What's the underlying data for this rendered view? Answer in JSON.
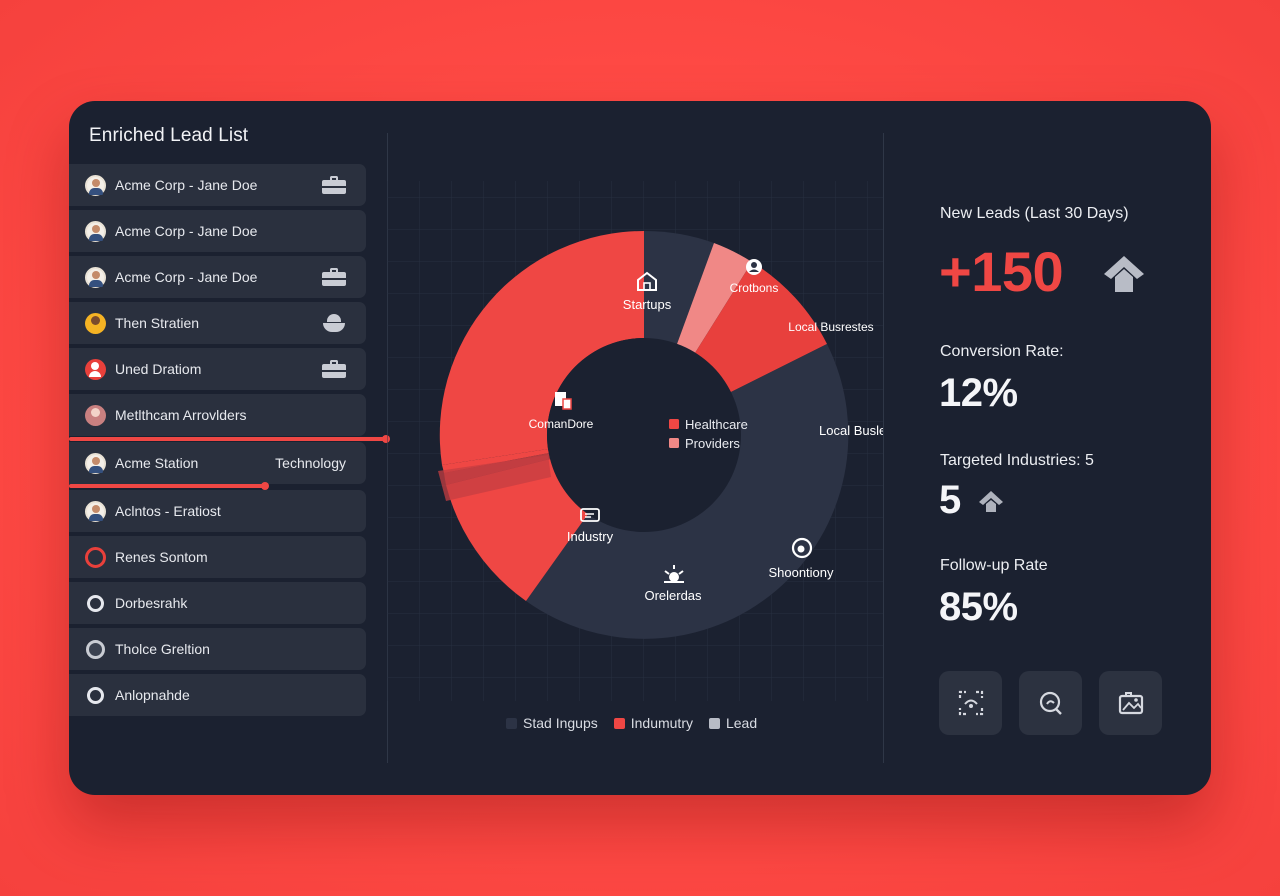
{
  "lead_list": {
    "title": "Enriched Lead List",
    "items": [
      {
        "name": "Acme Corp - Jane Doe",
        "avatar": "person-avatar",
        "icon": "briefcase-icon"
      },
      {
        "name": "Acme Corp - Jane Doe",
        "avatar": "person-avatar",
        "icon": ""
      },
      {
        "name": "Acme Corp - Jane Doe",
        "avatar": "person-avatar",
        "icon": "briefcase-icon"
      },
      {
        "name": "Then Stratien",
        "avatar": "person-avatar",
        "icon": "hat-icon"
      },
      {
        "name": "Uned Dratiom",
        "avatar": "person-avatar",
        "icon": "briefcase-icon"
      },
      {
        "name": "Metlthcam Arrovlders",
        "avatar": "person-avatar",
        "icon": ""
      },
      {
        "name": "Acme Station",
        "avatar": "person-avatar",
        "tag": "Technology"
      },
      {
        "name": "Aclntos - Eratiost",
        "avatar": "person-avatar",
        "icon": ""
      },
      {
        "name": "Renes Sontom",
        "avatar": "ring-icon",
        "icon": ""
      },
      {
        "name": "Dorbesrahk",
        "avatar": "ring-icon",
        "icon": ""
      },
      {
        "name": "Tholce Greltion",
        "avatar": "ring-icon",
        "icon": ""
      },
      {
        "name": "Anlopnahde",
        "avatar": "ring-icon",
        "icon": ""
      }
    ],
    "progress_fractions": [
      1.0,
      0.62
    ]
  },
  "chart_data": {
    "type": "pie",
    "segments": [
      {
        "label": "Startups",
        "color": "#ef4744",
        "icon": "building-icon"
      },
      {
        "label": "Crotbons",
        "color": "#2c3345",
        "icon": "person-icon"
      },
      {
        "label": "",
        "color": "#f08886",
        "icon": ""
      },
      {
        "label": "Local Busrestes",
        "color": "#e8403d",
        "icon": ""
      },
      {
        "label": "Local Buslesses",
        "color": "#2c3345",
        "icon": ""
      },
      {
        "label": "Shoontiony",
        "color": "#2c3345",
        "icon": "gear-icon"
      },
      {
        "label": "Orelerdas",
        "color": "#2c3345",
        "icon": "sun-icon"
      },
      {
        "label": "Industry",
        "color": "#ef4744",
        "icon": "id-card-icon"
      },
      {
        "label": "",
        "color": "#b63c40",
        "icon": ""
      },
      {
        "label": "ComanDore",
        "color": "#ef4744",
        "icon": "doc-icon"
      }
    ],
    "center_legend": [
      {
        "label": "Healthcare",
        "color": "#ef4744"
      },
      {
        "label": "Providers",
        "color": "#f08886"
      }
    ],
    "legend": [
      {
        "label": "Stad Ingups",
        "color": "#2c3345"
      },
      {
        "label": "Indumutry",
        "color": "#ef4744"
      },
      {
        "label": "Lead",
        "color": "#b8bcc6"
      }
    ]
  },
  "metrics": {
    "new_leads_label": "New Leads (Last 30 Days)",
    "new_leads_value": "+150",
    "conversion_label": "Conversion Rate:",
    "conversion_value": "12%",
    "industries_label": "Targeted Industries: 5",
    "industries_value": "5",
    "followup_label": "Follow-up Rate",
    "followup_value": "85%"
  },
  "actions": [
    {
      "icon": "scan-icon"
    },
    {
      "icon": "search-refresh-icon"
    },
    {
      "icon": "image-icon"
    }
  ],
  "colors": {
    "accent": "#ef4744",
    "panel": "#1b2130",
    "background": "#ff4a45"
  }
}
